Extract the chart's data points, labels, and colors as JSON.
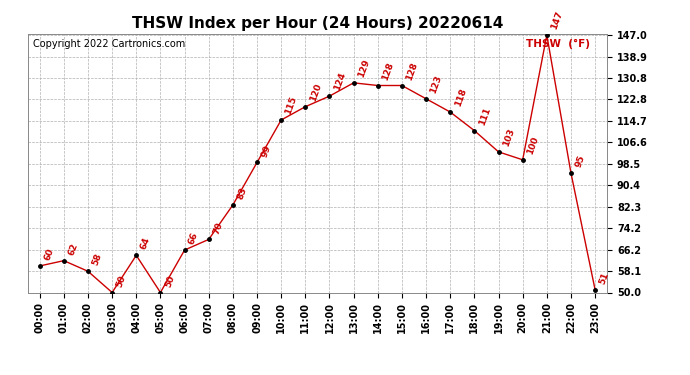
{
  "title": "THSW Index per Hour (24 Hours) 20220614",
  "copyright": "Copyright 2022 Cartronics.com",
  "legend_label": "THSW  (°F)",
  "hours": [
    "00:00",
    "01:00",
    "02:00",
    "03:00",
    "04:00",
    "05:00",
    "06:00",
    "07:00",
    "08:00",
    "09:00",
    "10:00",
    "11:00",
    "12:00",
    "13:00",
    "14:00",
    "15:00",
    "16:00",
    "17:00",
    "18:00",
    "19:00",
    "20:00",
    "21:00",
    "22:00",
    "23:00"
  ],
  "values": [
    60,
    62,
    58,
    50,
    64,
    50,
    66,
    70,
    83,
    99,
    115,
    120,
    124,
    129,
    128,
    128,
    123,
    118,
    111,
    103,
    100,
    147,
    95,
    51
  ],
  "line_color": "#cc0000",
  "marker_color": "#000000",
  "label_color": "#cc0000",
  "background_color": "#ffffff",
  "grid_color": "#b0b0b0",
  "ylim": [
    50.0,
    147.0
  ],
  "yticks": [
    50.0,
    58.1,
    66.2,
    74.2,
    82.3,
    90.4,
    98.5,
    106.6,
    114.7,
    122.8,
    130.8,
    138.9,
    147.0
  ],
  "title_fontsize": 11,
  "label_fontsize": 6.5,
  "axis_fontsize": 7,
  "copyright_fontsize": 7
}
